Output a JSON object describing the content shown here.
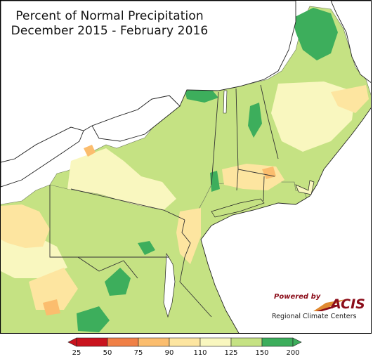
{
  "title": {
    "line1": "Percent of Normal Precipitation",
    "line2": "December 2015 - February 2016"
  },
  "logo": {
    "powered_by": "Powered by",
    "name": "ACIS",
    "subtitle": "Regional Climate Centers"
  },
  "legend": {
    "ticks": [
      "25",
      "50",
      "75",
      "90",
      "110",
      "125",
      "150",
      "200"
    ],
    "colors": [
      "#c9131e",
      "#f08046",
      "#fbbd6e",
      "#fde5a0",
      "#f9f7bf",
      "#c5e283",
      "#3dae5c"
    ]
  },
  "map": {
    "water_color": "#ffffff",
    "base_color": "#c5e283"
  }
}
